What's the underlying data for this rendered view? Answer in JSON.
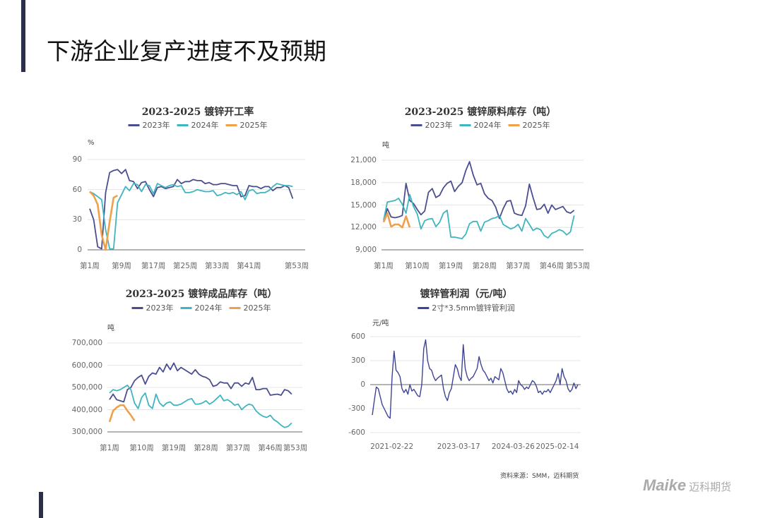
{
  "page": {
    "title": "下游企业复产进度不及预期",
    "source": "资料来源：SMM，迈科期货",
    "logo_text": "Maike",
    "logo_cn": "迈科期货"
  },
  "colors": {
    "2023": "#4a4e8f",
    "2024": "#3fb5c0",
    "2025": "#f0a04b",
    "accent": "#2c2f4a"
  },
  "chart_data": [
    {
      "type": "line",
      "title": "2023-2025 镀锌开工率",
      "ylabel": "%",
      "ylim": [
        0,
        90
      ],
      "yticks": [
        "0",
        "30",
        "60",
        "90"
      ],
      "ytick_values": [
        0,
        30,
        60,
        90
      ],
      "xticks": [
        "第1周",
        "第9周",
        "第17周",
        "第25周",
        "第33周",
        "第41周",
        "第53周"
      ],
      "xtick_weeks": [
        1,
        9,
        17,
        25,
        33,
        41,
        53
      ],
      "grid": true,
      "legend": "top",
      "series": [
        {
          "name": "2023年",
          "color": "#4a4e8f",
          "values": [
            41,
            30,
            3,
            1,
            57,
            77,
            79,
            80,
            76,
            80,
            69,
            68,
            61,
            67,
            68,
            60,
            53,
            62,
            63,
            61,
            62,
            63,
            70,
            66,
            68,
            68,
            70,
            69,
            69,
            66,
            67,
            65,
            65,
            66,
            66,
            65,
            64,
            64,
            53,
            54,
            64,
            63,
            63,
            61,
            63,
            63,
            59,
            62,
            62,
            64,
            62,
            51
          ]
        },
        {
          "name": "2024年",
          "color": "#3fb5c0",
          "values": [
            58,
            56,
            53,
            50,
            20,
            1,
            1,
            47,
            55,
            63,
            59,
            66,
            65,
            58,
            65,
            64,
            56,
            66,
            64,
            62,
            64,
            65,
            63,
            64,
            57,
            57,
            58,
            60,
            59,
            58,
            58,
            59,
            54,
            55,
            57,
            56,
            57,
            55,
            58,
            50,
            59,
            60,
            56,
            57,
            57,
            59,
            63,
            66,
            65,
            64,
            64,
            63
          ]
        },
        {
          "name": "2025年",
          "color": "#f0a04b",
          "values": [
            58,
            54,
            45,
            15,
            0,
            28,
            52,
            54
          ]
        }
      ]
    },
    {
      "type": "line",
      "title": "2023-2025 镀锌原料库存（吨）",
      "ylabel": "吨",
      "ylim": [
        9000,
        21000
      ],
      "yticks": [
        "9,000",
        "12,000",
        "15,000",
        "18,000",
        "21,000"
      ],
      "ytick_values": [
        9000,
        12000,
        15000,
        18000,
        21000
      ],
      "xticks": [
        "第1周",
        "第10周",
        "第19周",
        "第28周",
        "第37周",
        "第46周",
        "第53周"
      ],
      "xtick_weeks": [
        1,
        10,
        19,
        28,
        37,
        46,
        53
      ],
      "grid": true,
      "legend": "top",
      "series": [
        {
          "name": "2023年",
          "color": "#4a4e8f",
          "values": [
            12800,
            14500,
            13400,
            13300,
            13400,
            13600,
            17900,
            15600,
            15200,
            14400,
            13700,
            14200,
            16700,
            17200,
            16000,
            16300,
            17300,
            17900,
            18200,
            16800,
            17500,
            18000,
            19600,
            20800,
            19000,
            17700,
            17900,
            16500,
            15900,
            15600,
            14700,
            13200,
            14500,
            15500,
            15600,
            13900,
            13700,
            13600,
            14900,
            17800,
            16000,
            14400,
            14500,
            15100,
            13900,
            15000,
            14400,
            14600,
            14800,
            14100,
            13900,
            14300
          ]
        },
        {
          "name": "2024年",
          "color": "#3fb5c0",
          "values": [
            13000,
            15400,
            15500,
            15600,
            15900,
            15100,
            13900,
            16400,
            14800,
            13800,
            11800,
            12900,
            13100,
            13200,
            12100,
            12700,
            13900,
            14300,
            10700,
            10700,
            10600,
            10500,
            11100,
            12500,
            12800,
            12800,
            11500,
            12700,
            12900,
            13200,
            13300,
            13600,
            12400,
            12100,
            11800,
            12000,
            12400,
            11500,
            13200,
            12400,
            11600,
            11900,
            11700,
            10900,
            10600,
            11200,
            11400,
            11700,
            11500,
            11000,
            11400,
            13600
          ]
        },
        {
          "name": "2025年",
          "color": "#f0a04b",
          "values": [
            12700,
            13900,
            12100,
            12400,
            12400,
            12000,
            13500,
            12000
          ]
        }
      ]
    },
    {
      "type": "line",
      "title": "2023-2025 镀锌成品库存（吨）",
      "ylabel": "吨",
      "ylim": [
        300000,
        700000
      ],
      "yticks": [
        "300,000",
        "400,000",
        "500,000",
        "600,000",
        "700,000"
      ],
      "ytick_values": [
        300000,
        400000,
        500000,
        600000,
        700000
      ],
      "xticks": [
        "第1周",
        "第10周",
        "第19周",
        "第28周",
        "第37周",
        "第46周",
        "第53周"
      ],
      "xtick_weeks": [
        1,
        10,
        19,
        28,
        37,
        46,
        53
      ],
      "grid": true,
      "legend": "top",
      "series": [
        {
          "name": "2023年",
          "color": "#4a4e8f",
          "values": [
            445000,
            470000,
            445000,
            440000,
            435000,
            490000,
            500000,
            530000,
            545000,
            555000,
            515000,
            550000,
            565000,
            560000,
            590000,
            570000,
            605000,
            580000,
            610000,
            575000,
            590000,
            580000,
            570000,
            560000,
            580000,
            560000,
            550000,
            545000,
            535000,
            505000,
            510000,
            525000,
            520000,
            520000,
            495000,
            520000,
            520000,
            505000,
            520000,
            515000,
            545000,
            490000,
            490000,
            495000,
            495000,
            465000,
            468000,
            470000,
            465000,
            490000,
            485000,
            470000
          ]
        },
        {
          "name": "2024年",
          "color": "#3fb5c0",
          "values": [
            475000,
            490000,
            485000,
            490000,
            500000,
            510000,
            490000,
            430000,
            405000,
            455000,
            475000,
            420000,
            405000,
            470000,
            430000,
            415000,
            430000,
            435000,
            420000,
            420000,
            425000,
            435000,
            445000,
            450000,
            425000,
            425000,
            430000,
            440000,
            425000,
            435000,
            450000,
            465000,
            440000,
            445000,
            435000,
            420000,
            425000,
            400000,
            415000,
            425000,
            420000,
            395000,
            380000,
            370000,
            365000,
            375000,
            355000,
            345000,
            330000,
            320000,
            325000,
            340000
          ]
        },
        {
          "name": "2025年",
          "color": "#f0a04b",
          "values": [
            345000,
            395000,
            410000,
            420000,
            420000,
            395000,
            375000,
            350000
          ]
        }
      ]
    },
    {
      "type": "line",
      "title": "镀锌管利润（元/吨）",
      "ylabel": "元/吨",
      "ylim": [
        -600,
        600
      ],
      "yticks": [
        "-600",
        "-300",
        "0",
        "300",
        "600"
      ],
      "ytick_values": [
        -600,
        -300,
        0,
        300,
        600
      ],
      "xticks": [
        "2021-02-22",
        "2023-03-17",
        "2024-03-26",
        "2025-02-14"
      ],
      "grid": true,
      "legend": "top",
      "series": [
        {
          "name": "2寸*3.5mm镀锌管利润",
          "color": "#3d4496",
          "values": [
            -380,
            -200,
            -30,
            -50,
            -150,
            -250,
            -300,
            -350,
            -400,
            -420,
            100,
            420,
            180,
            150,
            100,
            -50,
            -100,
            -60,
            -120,
            0,
            -80,
            -60,
            -100,
            -140,
            -150,
            0,
            450,
            560,
            300,
            200,
            180,
            100,
            50,
            80,
            100,
            120,
            -50,
            -150,
            -200,
            -100,
            -50,
            100,
            250,
            200,
            100,
            50,
            500,
            200,
            100,
            50,
            80,
            100,
            150,
            200,
            350,
            250,
            180,
            150,
            100,
            50,
            80,
            20,
            100,
            80,
            60,
            200,
            150,
            50,
            -50,
            -100,
            -80,
            -120,
            -60,
            -100,
            50,
            0,
            -20,
            -60,
            -30,
            -50,
            0,
            50,
            30,
            -20,
            -100,
            -80,
            -120,
            -80,
            -90,
            -60,
            -100,
            -50,
            0,
            50,
            140,
            0,
            200,
            100,
            50,
            -50,
            -90,
            -60,
            20,
            -50,
            0
          ]
        }
      ]
    }
  ]
}
